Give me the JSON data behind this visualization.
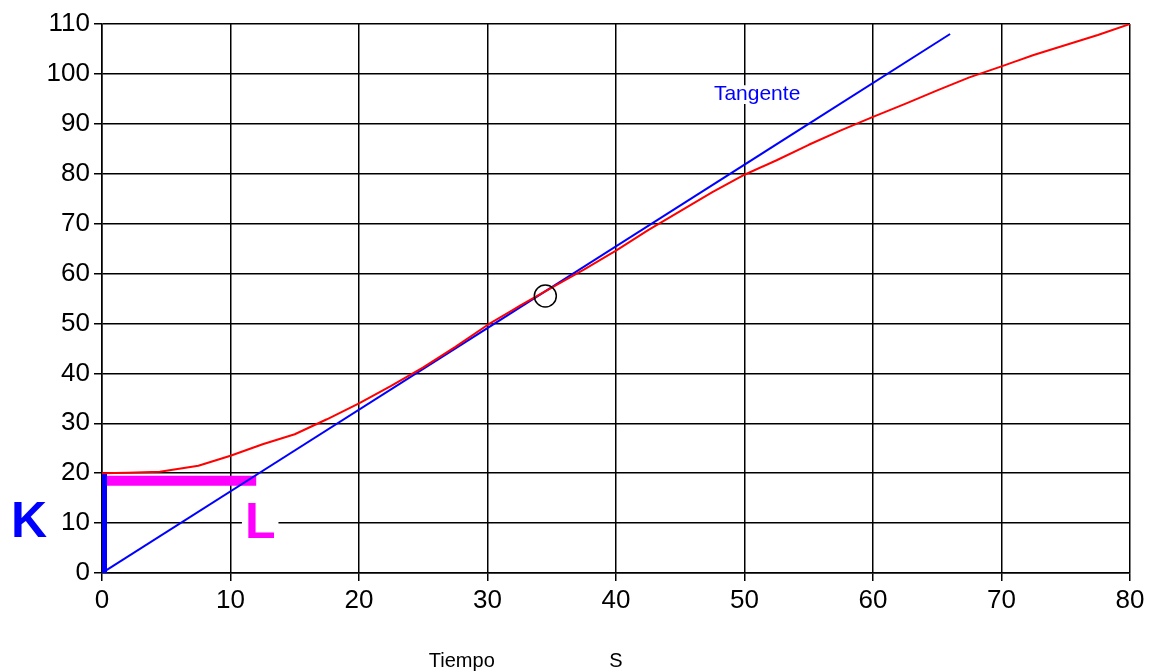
{
  "chart_data": {
    "type": "line",
    "xlabel": "Tiempo",
    "annotations": [
      "S"
    ],
    "xlim": [
      0,
      80
    ],
    "xticks": [
      0,
      10,
      20,
      30,
      40,
      50,
      60,
      70,
      80
    ],
    "ylim": [
      0,
      110
    ],
    "yticks": [
      0,
      10,
      20,
      30,
      40,
      50,
      60,
      70,
      80,
      90,
      100,
      110
    ],
    "grid": true,
    "marker": "none",
    "series": [
      {
        "color": "#ff0000",
        "x": [
          0,
          2,
          4.5,
          7.5,
          10,
          12.5,
          15,
          17.5,
          20,
          22.5,
          25,
          27.5,
          30,
          32.5,
          35,
          37.5,
          40,
          42.5,
          45,
          47.5,
          50,
          52.5,
          55,
          57.5,
          60,
          62.5,
          65,
          67.5,
          70,
          72.5,
          75,
          77.5,
          80
        ],
        "values": [
          20,
          20.1,
          20.3,
          21.5,
          23.5,
          25.8,
          27.8,
          30.8,
          34,
          37.5,
          41.2,
          45.3,
          49.7,
          53.5,
          57.2,
          60.8,
          64.6,
          68.7,
          72.5,
          76.3,
          79.8,
          82.7,
          85.8,
          88.7,
          91.4,
          94,
          96.7,
          99.3,
          101.5,
          103.8,
          105.8,
          107.8,
          110
        ]
      },
      {
        "name": "Tangente",
        "color": "#0000ff",
        "x": [
          0,
          66
        ],
        "values": [
          0,
          108
        ]
      },
      {
        "name": "K",
        "color": "#0000ff",
        "x": [
          0,
          0
        ],
        "values": [
          0,
          20
        ]
      },
      {
        "name": "L",
        "color": "#ff00ff",
        "x": [
          0,
          12
        ],
        "values": [
          18.5,
          18.5
        ]
      },
      {
        "type": "scatter",
        "marker": "circle",
        "color": "#000000",
        "x": [
          34.5
        ],
        "values": [
          55.5
        ]
      }
    ]
  }
}
